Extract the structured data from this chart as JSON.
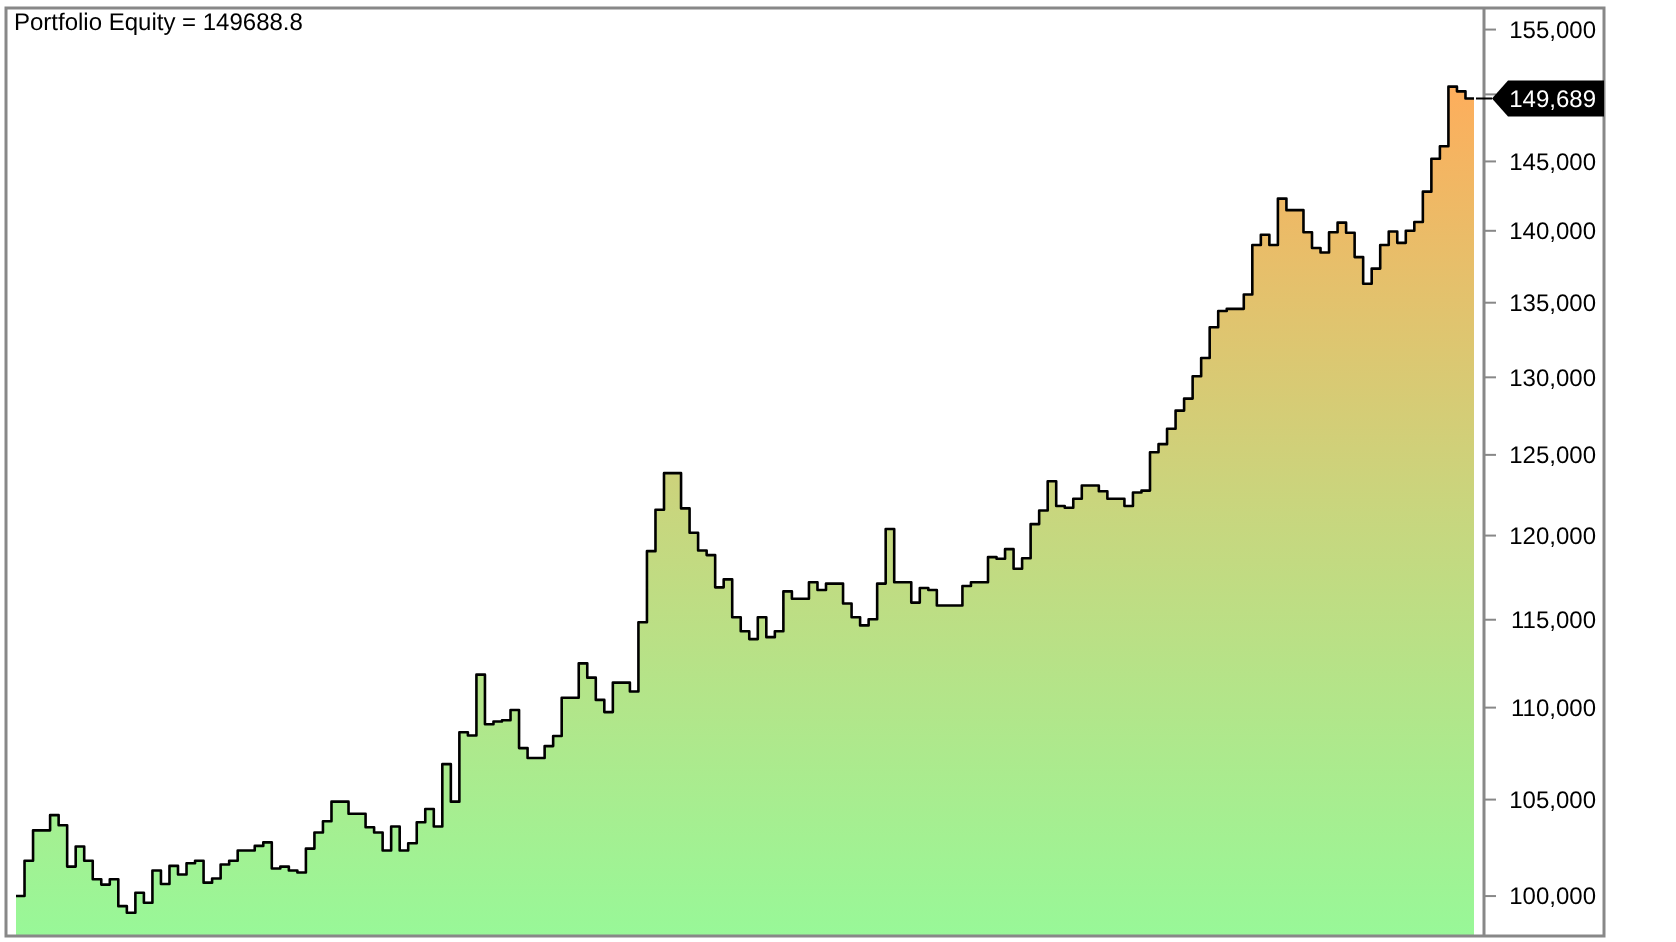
{
  "chart_data": {
    "type": "area",
    "title": "Portfolio Equity = 149688.8",
    "categories": [
      null,
      null,
      null,
      null,
      null,
      null,
      null,
      null,
      null,
      null,
      null,
      null,
      null,
      null,
      null,
      null,
      null,
      null,
      null,
      null,
      null,
      null,
      null,
      null,
      null,
      null,
      null,
      null,
      null,
      null,
      null,
      null,
      null,
      null,
      null,
      null,
      null,
      null,
      null,
      null,
      null,
      null,
      null,
      null,
      null,
      null,
      null,
      null,
      null,
      null,
      null,
      null,
      null,
      null,
      null,
      null,
      null,
      null,
      null,
      null,
      null,
      null,
      null,
      null,
      null,
      null,
      null,
      null,
      null,
      null,
      null,
      null,
      null,
      null,
      null,
      null,
      null,
      null,
      null,
      null,
      null,
      null,
      null,
      null,
      null,
      null,
      null,
      null,
      null,
      null,
      null,
      null,
      null,
      null,
      null,
      null,
      null,
      null,
      null,
      null,
      null,
      null,
      null,
      null,
      null,
      null,
      null,
      null,
      null,
      null,
      null,
      null,
      null,
      null,
      null,
      null,
      null,
      null,
      null,
      null,
      null,
      null,
      null,
      null,
      null,
      null,
      null,
      null,
      null,
      null,
      null,
      null,
      null,
      null,
      null,
      null,
      null,
      null,
      null,
      null,
      null,
      null,
      null,
      null,
      null,
      null,
      null,
      null,
      null,
      null,
      null,
      null,
      null,
      null,
      null,
      null,
      null,
      null,
      null,
      null,
      null,
      null,
      null,
      null,
      null,
      null,
      null,
      null,
      null,
      null,
      null
    ],
    "series": [
      {
        "color": "#000000",
        "values": [
          100000,
          101800,
          103380,
          103380,
          104180,
          103650,
          101500,
          102540,
          101800,
          100850,
          100580,
          100850,
          99490,
          99160,
          100170,
          99660,
          101300,
          100610,
          101540,
          101100,
          101670,
          101800,
          100680,
          100890,
          101610,
          101800,
          102330,
          102330,
          102570,
          102750,
          101400,
          101500,
          101300,
          101200,
          102430,
          103270,
          103860,
          104890,
          104890,
          104250,
          104250,
          103540,
          103270,
          102330,
          103580,
          102330,
          102710,
          103800,
          104500,
          103580,
          106900,
          104890,
          108640,
          108460,
          111850,
          109080,
          109230,
          109300,
          109870,
          107770,
          107230,
          107230,
          107880,
          108430,
          110550,
          110550,
          112490,
          111680,
          110430,
          109750,
          111400,
          111400,
          110900,
          114850,
          119060,
          121580,
          123850,
          123850,
          121660,
          120170,
          119100,
          118820,
          116900,
          117370,
          115140,
          114330,
          113880,
          115140,
          113990,
          114330,
          116660,
          116230,
          116230,
          117200,
          116740,
          117120,
          117120,
          115950,
          115140,
          114670,
          115030,
          117120,
          120400,
          117200,
          117200,
          116000,
          116860,
          116740,
          115830,
          115830,
          115830,
          116980,
          117200,
          117200,
          118700,
          118600,
          119180,
          118000,
          118630,
          120700,
          121530,
          123340,
          121810,
          121700,
          122260,
          123080,
          123080,
          122720,
          122260,
          122260,
          121810,
          122640,
          122760,
          125170,
          125680,
          126660,
          127830,
          128610,
          130070,
          131280,
          133330,
          134440,
          134580,
          134580,
          135560,
          139000,
          139720,
          139000,
          142300,
          141470,
          141470,
          139900,
          138790,
          138470,
          139900,
          140580,
          139860,
          138150,
          136300,
          137350,
          139000,
          139950,
          139150,
          140000,
          140630,
          142800,
          145200,
          146120,
          150590,
          150230,
          149689
        ],
        "value_labels": [
          null,
          null,
          null,
          null,
          null,
          null,
          null,
          null,
          null,
          null,
          null,
          null,
          null,
          null,
          null,
          null,
          null,
          null,
          null,
          null,
          null,
          null,
          null,
          null,
          null,
          null,
          null,
          null,
          null,
          null,
          null,
          null,
          null,
          null,
          null,
          null,
          null,
          null,
          null,
          null,
          null,
          null,
          null,
          null,
          null,
          null,
          null,
          null,
          null,
          null,
          null,
          null,
          null,
          null,
          null,
          null,
          null,
          null,
          null,
          null,
          null,
          null,
          null,
          null,
          null,
          null,
          null,
          null,
          null,
          null,
          null,
          null,
          null,
          null,
          null,
          null,
          null,
          null,
          null,
          null,
          null,
          null,
          null,
          null,
          null,
          null,
          null,
          null,
          null,
          null,
          null,
          null,
          null,
          null,
          null,
          null,
          null,
          null,
          null,
          null,
          null,
          null,
          null,
          null,
          null,
          null,
          null,
          null,
          null,
          null,
          null,
          null,
          null,
          null,
          null,
          null,
          null,
          null,
          null,
          null,
          null,
          null,
          null,
          null,
          null,
          null,
          null,
          null,
          null,
          null,
          null,
          null,
          null,
          null,
          null,
          null,
          null,
          null,
          null,
          null,
          null,
          null,
          null,
          null,
          null,
          null,
          null,
          null,
          null,
          null,
          null,
          null,
          null,
          null,
          null,
          null,
          null,
          null,
          null,
          null,
          null,
          null,
          null,
          null,
          null,
          null,
          null,
          null,
          null,
          null,
          "149,689"
        ]
      }
    ],
    "log": true,
    "ylim": [
      98000,
      156700
    ],
    "yticks": [
      {
        "value": 100000,
        "label": "100,000"
      },
      {
        "value": 105000,
        "label": "105,000"
      },
      {
        "value": 110000,
        "label": "110,000"
      },
      {
        "value": 115000,
        "label": "115,000"
      },
      {
        "value": 120000,
        "label": "120,000"
      },
      {
        "value": 125000,
        "label": "125,000"
      },
      {
        "value": 130000,
        "label": "130,000"
      },
      {
        "value": 135000,
        "label": "135,000"
      },
      {
        "value": 140000,
        "label": "140,000"
      },
      {
        "value": 145000,
        "label": "145,000"
      },
      {
        "value": 150000,
        "label": null
      },
      {
        "value": 155000,
        "label": "155,000"
      }
    ],
    "grid": false,
    "tick_labels": "y"
  }
}
